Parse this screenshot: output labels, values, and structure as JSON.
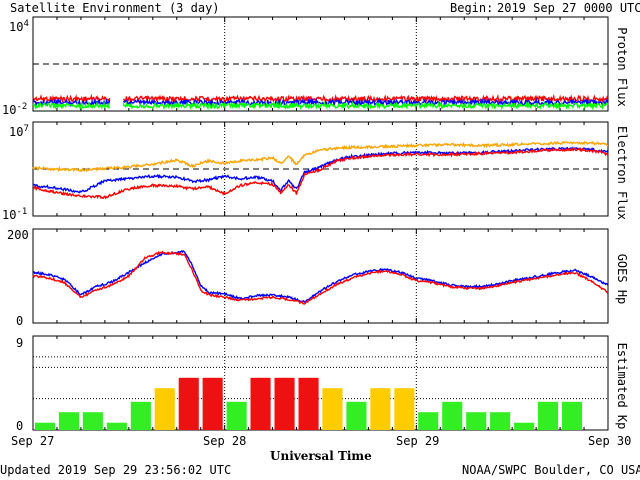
{
  "header": {
    "title": "Satellite Environment (3 day)",
    "begin_label": "Begin:",
    "begin_value": "2019 Sep 27 0000 UTC"
  },
  "footer": {
    "updated": "Updated 2019 Sep 29 23:56:02 UTC",
    "credit": "NOAA/SWPC Boulder, CO USA",
    "xlabel": "Universal Time"
  },
  "colors": {
    "red": "#ff0000",
    "blue": "#0000ff",
    "green": "#00ff00",
    "orange": "#ffa500",
    "kp_green": "#33ee22",
    "kp_yellow": "#ffcc00",
    "kp_red": "#ee1111",
    "frame": "#000000"
  },
  "chart_data": [
    {
      "type": "line",
      "panel": "proton",
      "ylabel": "Proton Flux",
      "yscale": "log",
      "ylim": [
        0.01,
        10000
      ],
      "ytick_labels": [
        {
          "base": "10",
          "exp": "4"
        },
        {
          "base": "10",
          "exp": "-2"
        }
      ],
      "threshold": 10,
      "xlim_hours": [
        0,
        72
      ],
      "gap_hours": [
        9.7,
        11.3
      ],
      "series": [
        {
          "color": "red",
          "x": [
            0,
            12,
            24,
            36,
            48,
            60,
            72
          ],
          "y": [
            0.06,
            0.06,
            0.06,
            0.06,
            0.06,
            0.06,
            0.06
          ]
        },
        {
          "color": "blue",
          "x": [
            0,
            12,
            24,
            36,
            48,
            60,
            72
          ],
          "y": [
            0.035,
            0.035,
            0.035,
            0.035,
            0.035,
            0.035,
            0.035
          ]
        },
        {
          "color": "green",
          "x": [
            0,
            12,
            24,
            36,
            48,
            60,
            72
          ],
          "y": [
            0.022,
            0.022,
            0.022,
            0.022,
            0.022,
            0.022,
            0.022
          ]
        }
      ]
    },
    {
      "type": "line",
      "panel": "electron",
      "ylabel": "Electron Flux",
      "yscale": "log",
      "ylim": [
        0.1,
        10000000
      ],
      "ytick_labels": [
        {
          "base": "10",
          "exp": "7"
        },
        {
          "base": "10",
          "exp": "-1"
        }
      ],
      "threshold": 1000,
      "xlim_hours": [
        0,
        72
      ],
      "series": [
        {
          "color": "orange",
          "x": [
            0,
            6,
            9,
            12,
            15,
            18,
            20,
            22,
            24,
            26,
            28,
            30,
            31,
            32,
            33,
            34,
            36,
            38,
            40,
            44,
            48,
            52,
            56,
            60,
            64,
            68,
            71,
            72
          ],
          "y": [
            1200,
            800,
            1100,
            1500,
            2500,
            6000,
            1800,
            5000,
            3000,
            5000,
            6000,
            9000,
            3000,
            12000,
            2500,
            14000,
            40000,
            60000,
            70000,
            80000,
            100000,
            120000,
            100000,
            120000,
            150000,
            170000,
            150000,
            120000
          ]
        },
        {
          "color": "blue",
          "x": [
            0,
            3,
            6,
            9,
            12,
            15,
            18,
            20,
            22,
            24,
            26,
            28,
            30,
            31,
            32,
            33,
            34,
            36,
            38,
            40,
            44,
            48,
            52,
            56,
            60,
            64,
            68,
            71,
            72
          ],
          "y": [
            40,
            25,
            10,
            100,
            150,
            250,
            200,
            90,
            120,
            250,
            150,
            200,
            100,
            15,
            90,
            20,
            500,
            1500,
            6000,
            12000,
            20000,
            25000,
            22000,
            25000,
            35000,
            50000,
            55000,
            40000,
            25000
          ]
        },
        {
          "color": "red",
          "x": [
            0,
            3,
            6,
            9,
            12,
            15,
            18,
            20,
            22,
            24,
            26,
            28,
            30,
            31,
            32,
            33,
            34,
            36,
            38,
            40,
            44,
            48,
            52,
            56,
            60,
            64,
            68,
            71,
            72
          ],
          "y": [
            25,
            10,
            5,
            4,
            20,
            40,
            35,
            20,
            30,
            8,
            40,
            70,
            50,
            10,
            45,
            8,
            300,
            900,
            5000,
            9000,
            15000,
            18000,
            16000,
            20000,
            25000,
            40000,
            45000,
            30000,
            15000
          ]
        }
      ]
    },
    {
      "type": "line",
      "panel": "hp",
      "ylabel": "GOES Hp",
      "ylim": [
        0,
        200
      ],
      "ytick_labels": [
        "200",
        "0"
      ],
      "xlim_hours": [
        0,
        72
      ],
      "series": [
        {
          "color": "blue",
          "x": [
            0,
            2,
            4,
            6,
            8,
            10,
            12,
            14,
            16,
            18,
            19,
            20,
            21,
            22,
            24,
            26,
            28,
            30,
            32,
            34,
            36,
            38,
            40,
            42,
            44,
            46,
            48,
            50,
            52,
            54,
            56,
            58,
            60,
            62,
            64,
            66,
            68,
            70,
            72
          ],
          "y": [
            108,
            103,
            92,
            60,
            78,
            88,
            108,
            128,
            146,
            150,
            152,
            120,
            80,
            65,
            62,
            52,
            58,
            60,
            55,
            45,
            68,
            88,
            102,
            110,
            114,
            108,
            95,
            90,
            82,
            78,
            78,
            82,
            90,
            96,
            102,
            108,
            112,
            98,
            80
          ]
        },
        {
          "color": "red",
          "x": [
            0,
            2,
            4,
            6,
            8,
            10,
            12,
            14,
            16,
            18,
            19,
            20,
            21,
            22,
            24,
            26,
            28,
            30,
            32,
            34,
            36,
            38,
            40,
            42,
            44,
            46,
            48,
            50,
            52,
            54,
            56,
            58,
            60,
            62,
            64,
            66,
            68,
            70,
            72
          ],
          "y": [
            100,
            96,
            85,
            55,
            70,
            82,
            100,
            138,
            150,
            148,
            145,
            110,
            70,
            60,
            55,
            48,
            52,
            55,
            50,
            42,
            62,
            82,
            96,
            106,
            110,
            104,
            90,
            86,
            78,
            74,
            74,
            78,
            86,
            92,
            98,
            104,
            106,
            88,
            65
          ]
        }
      ]
    },
    {
      "type": "bar",
      "panel": "kp",
      "ylabel": "Estimated Kp",
      "ylim": [
        0,
        9
      ],
      "ytick_labels": [
        "9",
        "0"
      ],
      "xlim_hours": [
        0,
        72
      ],
      "values": [
        0.7,
        1.7,
        1.7,
        0.7,
        2.7,
        4,
        5,
        5,
        2.7,
        5,
        5,
        5,
        4,
        2.7,
        4,
        4,
        1.7,
        2.7,
        1.7,
        1.7,
        0.7,
        2.7,
        2.7
      ],
      "colors": [
        "kp_green",
        "kp_green",
        "kp_green",
        "kp_green",
        "kp_green",
        "kp_yellow",
        "kp_red",
        "kp_red",
        "kp_green",
        "kp_red",
        "kp_red",
        "kp_red",
        "kp_yellow",
        "kp_green",
        "kp_yellow",
        "kp_yellow",
        "kp_green",
        "kp_green",
        "kp_green",
        "kp_green",
        "kp_green",
        "kp_green",
        "kp_green"
      ]
    }
  ],
  "x_ticks": [
    "Sep 27",
    "Sep 28",
    "Sep 29",
    "Sep 30"
  ]
}
